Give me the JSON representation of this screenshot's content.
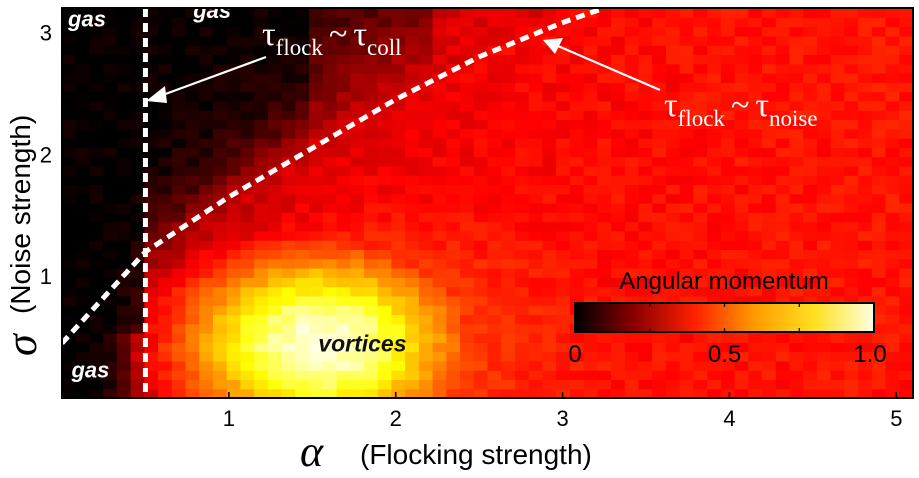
{
  "chart_data": {
    "type": "heatmap",
    "title": "",
    "xlabel_symbol": "α",
    "xlabel": "(Flocking strength)",
    "ylabel_symbol": "σ",
    "ylabel": "(Noise strength)",
    "xlim": [
      0,
      5.1
    ],
    "ylim": [
      0,
      3.2
    ],
    "xticks": [
      1,
      2,
      3,
      4,
      5
    ],
    "yticks": [
      1,
      2,
      3
    ],
    "grid_nx": 62,
    "grid_ny": 42,
    "model": {
      "peak_alpha": 1.55,
      "peak_sigma": 0.45,
      "peak_value": 1.0,
      "plateau_value": 0.42,
      "gas_edge_alpha": 0.5,
      "collision_boundary": "tau_flock ~ tau_coll",
      "noise_boundary": "tau_flock ~ tau_noise"
    },
    "boundary_coll_alpha": 0.5,
    "boundary_noise": {
      "alpha": [
        0.0,
        0.5,
        1.0,
        1.5,
        2.0,
        2.5,
        3.0,
        3.25
      ],
      "sigma": [
        0.45,
        1.2,
        1.65,
        2.05,
        2.45,
        2.8,
        3.08,
        3.2
      ]
    },
    "colorbar": {
      "label": "Angular momentum",
      "ticks": [
        "0",
        "0.5",
        "1.0"
      ],
      "tick_values": [
        0,
        0.5,
        1.0
      ],
      "colormap": "hot",
      "colors": [
        "#000000",
        "#8b0000",
        "#ff2000",
        "#ff9a00",
        "#ffe020",
        "#ffffe0"
      ]
    },
    "region_labels": [
      {
        "text": "gas",
        "alpha": 0.15,
        "sigma": 3.05
      },
      {
        "text": "gas",
        "alpha": 0.9,
        "sigma": 3.12
      },
      {
        "text": "gas",
        "alpha": 0.17,
        "sigma": 0.17
      },
      {
        "text": "vortices",
        "alpha": 1.8,
        "sigma": 0.38
      }
    ],
    "annotations": {
      "coll": {
        "tau": "τ",
        "sub1": "flock",
        "sim": "~",
        "tau2": "τ",
        "sub2": "coll"
      },
      "noise": {
        "tau": "τ",
        "sub1": "flock",
        "sim": "~",
        "tau2": "τ",
        "sub2": "noise"
      }
    }
  }
}
